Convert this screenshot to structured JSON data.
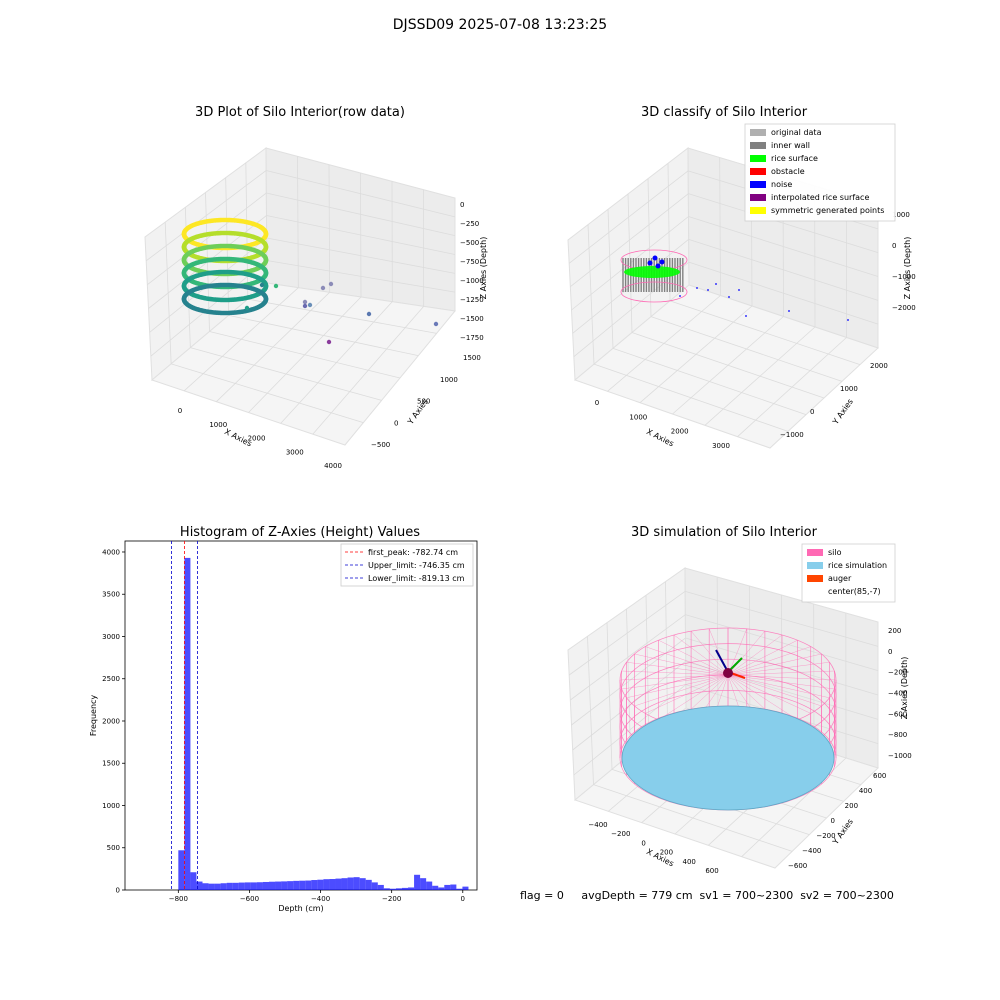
{
  "suptitle": "DJSSD09 2025-07-08 13:23:25",
  "footer": "flag = 0     avgDepth = 779 cm  sv1 = 700~2300  sv2 = 700~2300",
  "chart_data": [
    {
      "type": "scatter",
      "title": "3D Plot of Silo Interior(row data)",
      "xlabel": "X Axies",
      "ylabel": "Y Axies",
      "zlabel": "Z Axies (Depth)",
      "x_ticks": [
        "0",
        "1000",
        "2000",
        "3000",
        "4000"
      ],
      "y_ticks": [
        "−500",
        "0",
        "500",
        "1000",
        "1500"
      ],
      "z_ticks": [
        "0",
        "−250",
        "−500",
        "−750",
        "−1000",
        "−1250",
        "−1500",
        "−1750"
      ],
      "colormap": "viridis",
      "description_points": "dense ring of points near origin plus scattered outliers"
    },
    {
      "type": "scatter",
      "title": "3D classify of Silo Interior",
      "xlabel": "X Axies",
      "ylabel": "Y Axies",
      "zlabel": "Z Axies (Depth)",
      "x_ticks": [
        "0",
        "1000",
        "2000",
        "3000"
      ],
      "y_ticks": [
        "−1000",
        "0",
        "1000",
        "2000"
      ],
      "z_ticks": [
        "1000",
        "0",
        "−1000",
        "−2000"
      ],
      "legend": [
        {
          "label": "original data",
          "color": "#b0b0b0"
        },
        {
          "label": "inner wall",
          "color": "#808080"
        },
        {
          "label": "rice surface",
          "color": "#00ff00"
        },
        {
          "label": "obstacle",
          "color": "#ff0000"
        },
        {
          "label": "noise",
          "color": "#0000ff"
        },
        {
          "label": "interpolated rice surface",
          "color": "#800080"
        },
        {
          "label": "symmetric generated points",
          "color": "#ffff00"
        }
      ]
    },
    {
      "type": "bar",
      "title": "Histogram of Z-Axies (Height) Values",
      "xlabel": "Depth (cm)",
      "ylabel": "Frequency",
      "xlim": [
        -950,
        40
      ],
      "ylim": [
        0,
        4130
      ],
      "x_ticks": [
        -800,
        -600,
        -400,
        -200,
        0
      ],
      "x_tick_labels": [
        "−800",
        "−600",
        "−400",
        "−200",
        "0"
      ],
      "y_ticks": [
        0,
        500,
        1000,
        1500,
        2000,
        2500,
        3000,
        3500,
        4000
      ],
      "bar_color": "#0000ff",
      "bin_width": 17,
      "bins": [
        {
          "x": -800,
          "h": 470
        },
        {
          "x": -783,
          "h": 3930
        },
        {
          "x": -766,
          "h": 210
        },
        {
          "x": -749,
          "h": 100
        },
        {
          "x": -732,
          "h": 80
        },
        {
          "x": -715,
          "h": 75
        },
        {
          "x": -698,
          "h": 75
        },
        {
          "x": -681,
          "h": 80
        },
        {
          "x": -664,
          "h": 85
        },
        {
          "x": -647,
          "h": 85
        },
        {
          "x": -630,
          "h": 88
        },
        {
          "x": -613,
          "h": 90
        },
        {
          "x": -596,
          "h": 90
        },
        {
          "x": -579,
          "h": 92
        },
        {
          "x": -562,
          "h": 95
        },
        {
          "x": -545,
          "h": 98
        },
        {
          "x": -528,
          "h": 100
        },
        {
          "x": -511,
          "h": 102
        },
        {
          "x": -494,
          "h": 105
        },
        {
          "x": -477,
          "h": 108
        },
        {
          "x": -460,
          "h": 110
        },
        {
          "x": -443,
          "h": 112
        },
        {
          "x": -426,
          "h": 118
        },
        {
          "x": -409,
          "h": 122
        },
        {
          "x": -392,
          "h": 128
        },
        {
          "x": -375,
          "h": 130
        },
        {
          "x": -358,
          "h": 135
        },
        {
          "x": -341,
          "h": 140
        },
        {
          "x": -324,
          "h": 148
        },
        {
          "x": -307,
          "h": 152
        },
        {
          "x": -290,
          "h": 140
        },
        {
          "x": -273,
          "h": 120
        },
        {
          "x": -256,
          "h": 90
        },
        {
          "x": -239,
          "h": 60
        },
        {
          "x": -222,
          "h": 20
        },
        {
          "x": -205,
          "h": 15
        },
        {
          "x": -188,
          "h": 20
        },
        {
          "x": -171,
          "h": 25
        },
        {
          "x": -154,
          "h": 30
        },
        {
          "x": -137,
          "h": 180
        },
        {
          "x": -120,
          "h": 140
        },
        {
          "x": -103,
          "h": 100
        },
        {
          "x": -86,
          "h": 50
        },
        {
          "x": -69,
          "h": 30
        },
        {
          "x": -52,
          "h": 60
        },
        {
          "x": -35,
          "h": 65
        },
        {
          "x": -18,
          "h": 15
        },
        {
          "x": -1,
          "h": 40
        }
      ],
      "vlines": [
        {
          "label": "first_peak: -782.74 cm",
          "x": -782.74,
          "color": "#ff0000"
        },
        {
          "label": "Upper_limit: -746.35 cm",
          "x": -746.35,
          "color": "#0000cc"
        },
        {
          "label": "Lower_limit: -819.13 cm",
          "x": -819.13,
          "color": "#0000cc"
        }
      ]
    },
    {
      "type": "scatter",
      "title": "3D simulation of Silo Interior",
      "xlabel": "X Axies",
      "ylabel": "Y Axies",
      "zlabel": "Z Axies (Depth)",
      "x_ticks": [
        "−400",
        "−200",
        "0",
        "200",
        "400",
        "600"
      ],
      "y_ticks": [
        "−600",
        "−400",
        "−200",
        "0",
        "200",
        "400",
        "600"
      ],
      "z_ticks": [
        "200",
        "0",
        "−200",
        "−400",
        "−600",
        "−800",
        "−1000"
      ],
      "legend": [
        {
          "label": "silo",
          "color": "#ff69b4"
        },
        {
          "label": "rice simulation",
          "color": "#87ceeb"
        },
        {
          "label": "auger",
          "color": "#ff4500"
        },
        {
          "label": "center(85,-7)",
          "color": ""
        }
      ]
    }
  ]
}
